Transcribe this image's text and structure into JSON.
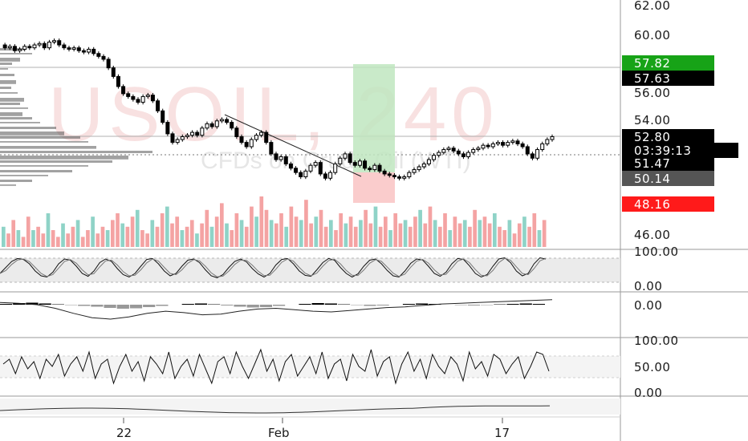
{
  "watermark": {
    "symbol": "USOIL, 240",
    "subtitle": "CFDs on Crude Oil (WTI)"
  },
  "colors": {
    "up_volume": "#8fd3c7",
    "down_volume": "#f4a3a3",
    "target_zone": "#bfe6c0",
    "stop_zone": "#f9c6c6",
    "candle": "#000000",
    "grid": "#c8c8c8",
    "price_green_badge": "#17a317",
    "price_red_badge": "#ff1a1a",
    "price_black_badge": "#000000",
    "price_gray_badge": "#555555"
  },
  "price_axis": {
    "ticks": [
      "62.00",
      "60.00",
      "56.00",
      "54.00",
      "46.00"
    ],
    "badges": [
      {
        "label": "57.82",
        "kind": "green"
      },
      {
        "label": "57.63",
        "kind": "black"
      },
      {
        "label": "52.80",
        "kind": "black"
      },
      {
        "label": "03:39:13",
        "kind": "black"
      },
      {
        "label": "51.47",
        "kind": "black"
      },
      {
        "label": "50.14",
        "kind": "gray"
      },
      {
        "label": "48.16",
        "kind": "red"
      }
    ]
  },
  "panel_axes": {
    "stoch": [
      "100.00",
      "0.00"
    ],
    "macd": [
      "0.00"
    ],
    "osc": [
      "100.00",
      "50.00",
      "0.00"
    ]
  },
  "x_axis": {
    "ticks": [
      "22",
      "Feb",
      "17"
    ]
  },
  "chart_data": {
    "type": "line",
    "title": "USOIL, 240",
    "ylim": [
      45,
      62.5
    ],
    "price_series": [
      59.2,
      59.0,
      59.1,
      58.8,
      58.9,
      59.1,
      59.0,
      59.2,
      59.3,
      59.0,
      59.4,
      59.5,
      59.2,
      59.0,
      58.9,
      59.0,
      58.8,
      58.7,
      58.9,
      58.6,
      58.4,
      58.2,
      57.6,
      57.0,
      56.3,
      55.8,
      55.6,
      55.4,
      55.2,
      55.6,
      55.7,
      55.3,
      54.6,
      53.8,
      53.0,
      52.4,
      52.6,
      52.8,
      52.9,
      53.1,
      52.9,
      53.4,
      53.7,
      53.5,
      53.9,
      54.0,
      53.8,
      53.4,
      52.8,
      52.4,
      52.1,
      52.6,
      52.9,
      53.1,
      52.4,
      51.6,
      51.2,
      51.4,
      50.9,
      50.6,
      50.3,
      50.0,
      50.4,
      50.8,
      51.0,
      50.2,
      49.9,
      50.3,
      50.9,
      51.3,
      51.6,
      51.0,
      50.8,
      51.1,
      50.6,
      50.5,
      50.8,
      50.4,
      50.2,
      50.1,
      50.0,
      49.9,
      50.0,
      50.3,
      50.5,
      50.7,
      50.9,
      51.2,
      51.5,
      51.7,
      51.9,
      52.0,
      51.8,
      51.6,
      51.4,
      51.7,
      51.9,
      52.0,
      52.2,
      52.1,
      52.3,
      52.4,
      52.2,
      52.4,
      52.5,
      52.3,
      52.1,
      51.6,
      51.3,
      51.9,
      52.3,
      52.6,
      52.8
    ],
    "volume": [
      6,
      4,
      8,
      5,
      3,
      9,
      5,
      6,
      4,
      10,
      5,
      3,
      7,
      4,
      6,
      8,
      3,
      5,
      9,
      4,
      6,
      5,
      8,
      10,
      7,
      6,
      9,
      11,
      5,
      4,
      8,
      6,
      10,
      12,
      7,
      9,
      5,
      6,
      8,
      4,
      7,
      11,
      6,
      9,
      13,
      7,
      5,
      10,
      8,
      6,
      12,
      9,
      15,
      11,
      8,
      7,
      10,
      6,
      12,
      9,
      8,
      14,
      7,
      9,
      11,
      6,
      8,
      5,
      10,
      7,
      9,
      6,
      8,
      11,
      7,
      12,
      6,
      9,
      5,
      10,
      7,
      8,
      6,
      9,
      11,
      7,
      12,
      8,
      6,
      10,
      5,
      9,
      7,
      8,
      6,
      11,
      8,
      9,
      7,
      10,
      6,
      5,
      8,
      4,
      7,
      9,
      6,
      10,
      5,
      8
    ],
    "stoch_k": [
      30,
      55,
      80,
      92,
      88,
      70,
      40,
      20,
      15,
      35,
      70,
      90,
      85,
      60,
      30,
      18,
      40,
      75,
      90,
      80,
      50,
      25,
      15,
      30,
      60,
      88,
      92,
      70,
      40,
      20,
      30,
      60,
      85,
      90,
      75,
      45,
      20,
      12,
      25,
      55,
      80,
      90,
      78,
      50,
      28,
      15,
      30,
      65,
      88,
      92,
      70,
      40,
      22,
      18,
      45,
      75,
      92,
      85,
      55,
      30,
      15,
      28,
      60,
      85,
      90,
      70,
      42,
      20,
      15,
      40,
      72,
      90,
      86,
      60,
      30,
      18,
      35,
      70,
      92,
      88,
      62,
      30,
      15,
      25,
      60,
      90,
      95,
      75,
      40,
      20,
      30,
      70,
      95,
      90
    ],
    "macd_hist": [
      0.2,
      0.4,
      0.5,
      0.3,
      0.1,
      -0.1,
      -0.3,
      -0.5,
      -0.8,
      -1.0,
      -0.9,
      -0.6,
      -0.3,
      0.0,
      0.2,
      0.3,
      0.1,
      -0.2,
      -0.5,
      -0.7,
      -0.6,
      -0.3,
      0.0,
      0.2,
      0.4,
      0.3,
      0.1,
      -0.1,
      -0.3,
      -0.2,
      0.0,
      0.2,
      0.3,
      0.2,
      0.0,
      -0.1,
      -0.2,
      -0.1,
      0.1,
      0.2,
      0.3,
      0.2
    ],
    "macd_line": [
      0.3,
      0.2,
      0.0,
      -0.5,
      -1.2,
      -1.8,
      -2.0,
      -1.7,
      -1.2,
      -0.9,
      -1.1,
      -1.4,
      -1.3,
      -0.9,
      -0.6,
      -0.5,
      -0.7,
      -0.9,
      -1.0,
      -0.8,
      -0.6,
      -0.4,
      -0.3,
      -0.1,
      0.1,
      0.2,
      0.3,
      0.4,
      0.5,
      0.6,
      0.7
    ],
    "osc": [
      60,
      70,
      40,
      75,
      50,
      65,
      30,
      70,
      55,
      80,
      35,
      60,
      75,
      45,
      85,
      30,
      60,
      70,
      20,
      55,
      80,
      45,
      65,
      25,
      75,
      60,
      40,
      85,
      30,
      55,
      70,
      35,
      80,
      50,
      20,
      65,
      75,
      40,
      85,
      55,
      30,
      60,
      90,
      45,
      70,
      25,
      65,
      80,
      35,
      55,
      75,
      40,
      85,
      30,
      60,
      70,
      25,
      80,
      55,
      45,
      90,
      35,
      65,
      75,
      20,
      60,
      85,
      45,
      70,
      30,
      80,
      55,
      40,
      75,
      60,
      25,
      85,
      50,
      65,
      35,
      80,
      70,
      40,
      60,
      75,
      30,
      55,
      85,
      80,
      45
    ]
  }
}
